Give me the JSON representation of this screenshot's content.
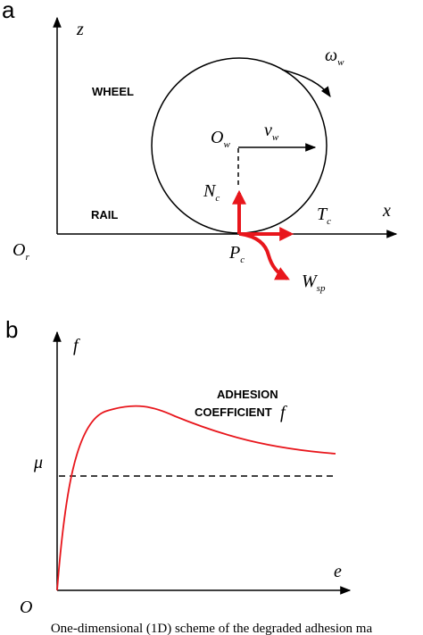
{
  "panel_a": {
    "letter": "a",
    "wheel_label": "WHEEL",
    "rail_label": "RAIL",
    "axis_z": "z",
    "axis_x": "x",
    "origin": {
      "main": "O",
      "sub": "r"
    },
    "wheel_center": {
      "main": "O",
      "sub": "w"
    },
    "velocity": {
      "main": "v",
      "sub": "w"
    },
    "omega": {
      "main": "ω",
      "sub": "w"
    },
    "normal_force": {
      "main": "N",
      "sub": "c"
    },
    "tangential_force": {
      "main": "T",
      "sub": "c"
    },
    "contact_point": {
      "main": "P",
      "sub": "c"
    },
    "wear": {
      "main": "W",
      "sub": "sp"
    },
    "colors": {
      "force_arrow": "#e8161c",
      "lines": "#000000"
    }
  },
  "panel_b": {
    "letter": "b",
    "axis_y": "f",
    "axis_x": "e",
    "origin": "O",
    "mu_label": "μ",
    "curve_label_line1": "ADHESION",
    "curve_label_line2": "COEFFICIENT",
    "curve_label_symbol": "f",
    "colors": {
      "curve": "#e8161c",
      "dashed": "#000000"
    }
  },
  "caption": "One-dimensional (1D) scheme of the degraded adhesion ma"
}
